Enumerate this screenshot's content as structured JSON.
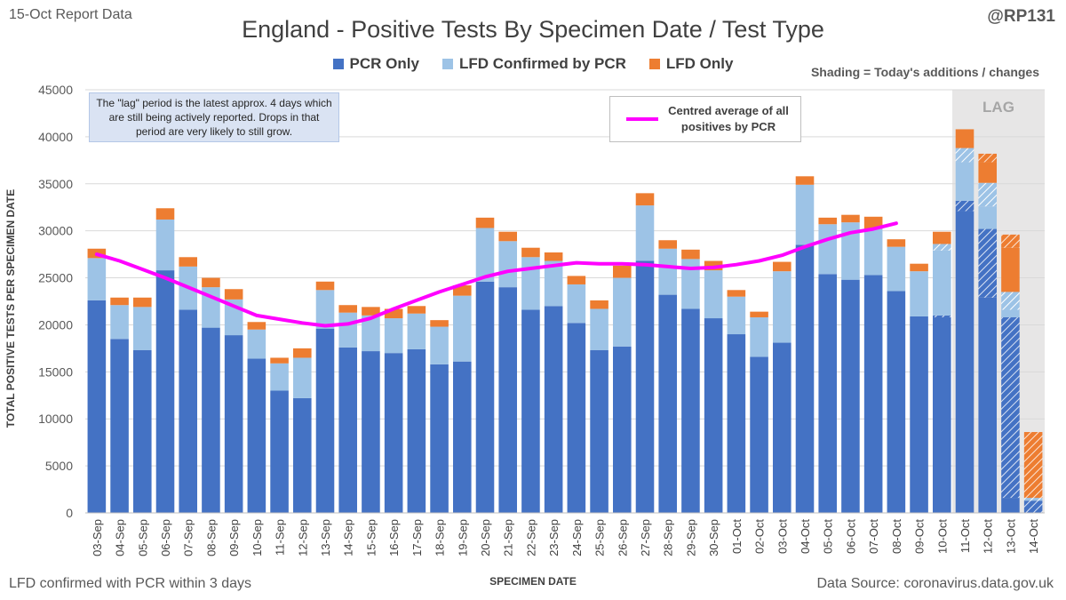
{
  "header": {
    "report_label": "15-Oct Report Data",
    "handle": "@RP131",
    "footer_left": "LFD confirmed with PCR within 3 days",
    "footer_right": "Data Source: coronavirus.data.gov.uk",
    "shading_note": "Shading = Today's additions / changes",
    "lag_note": "The \"lag\" period is the latest approx. 4 days which are still being actively reported.  Drops in that period are very likely to still grow.",
    "lag_label": "LAG",
    "avg_legend": "Centred average of all positives by PCR"
  },
  "colors": {
    "pcr": "#4472c4",
    "lfd_confirmed": "#9dc3e6",
    "lfd_only": "#ed7d31",
    "average": "#ff00ff",
    "lag_shade": "#e7e6e6"
  },
  "chart_data": {
    "type": "bar",
    "stacked": true,
    "title": "England - Positive Tests By Specimen Date / Test Type",
    "xlabel": "SPECIMEN DATE",
    "ylabel": "TOTAL POSITIVE TESTS PER SPECIMEN DATE",
    "ylim": [
      0,
      45000
    ],
    "yticks": [
      0,
      5000,
      10000,
      15000,
      20000,
      25000,
      30000,
      35000,
      40000,
      45000
    ],
    "grid": true,
    "legend_position": "top",
    "lag_categories": [
      "11-Oct",
      "12-Oct",
      "13-Oct",
      "14-Oct"
    ],
    "categories": [
      "03-Sep",
      "04-Sep",
      "05-Sep",
      "06-Sep",
      "07-Sep",
      "08-Sep",
      "09-Sep",
      "10-Sep",
      "11-Sep",
      "12-Sep",
      "13-Sep",
      "14-Sep",
      "15-Sep",
      "16-Sep",
      "17-Sep",
      "18-Sep",
      "19-Sep",
      "20-Sep",
      "21-Sep",
      "22-Sep",
      "23-Sep",
      "24-Sep",
      "25-Sep",
      "26-Sep",
      "27-Sep",
      "28-Sep",
      "29-Sep",
      "30-Sep",
      "01-Oct",
      "02-Oct",
      "03-Oct",
      "04-Oct",
      "05-Oct",
      "06-Oct",
      "07-Oct",
      "08-Oct",
      "09-Oct",
      "10-Oct",
      "11-Oct",
      "12-Oct",
      "13-Oct",
      "14-Oct"
    ],
    "series": [
      {
        "name": "PCR Only",
        "values": [
          22600,
          18500,
          17300,
          25800,
          21600,
          19700,
          18900,
          16400,
          13000,
          12200,
          19600,
          17600,
          17200,
          17000,
          17400,
          15800,
          16100,
          24600,
          24000,
          21600,
          22000,
          20200,
          17300,
          17700,
          26800,
          23200,
          21700,
          20700,
          19000,
          16600,
          18100,
          28500,
          25400,
          24800,
          25300,
          23600,
          20900,
          21000,
          33200,
          30200,
          20800,
          1300
        ]
      },
      {
        "name": "LFD Confirmed by PCR",
        "values": [
          4500,
          3600,
          4600,
          5400,
          4600,
          4300,
          3800,
          3100,
          2900,
          4300,
          4100,
          3700,
          3800,
          3700,
          3800,
          4000,
          7000,
          5700,
          4900,
          5600,
          4800,
          4100,
          4400,
          7300,
          5900,
          4900,
          5300,
          5100,
          4000,
          4200,
          7600,
          6400,
          5300,
          6100,
          4900,
          4700,
          4800,
          7600,
          5600,
          4900,
          2700,
          300
        ]
      },
      {
        "name": "LFD Only",
        "values": [
          1000,
          800,
          1000,
          1200,
          1000,
          1000,
          1100,
          800,
          600,
          1000,
          900,
          800,
          900,
          1000,
          800,
          700,
          1100,
          1100,
          1000,
          1000,
          900,
          900,
          900,
          1300,
          1300,
          900,
          1000,
          1000,
          700,
          600,
          1000,
          900,
          700,
          800,
          1300,
          800,
          800,
          1300,
          2000,
          3100,
          6100,
          7000
        ]
      },
      {
        "name": "Centred average of all positives by PCR",
        "type": "line",
        "values": [
          27500,
          26800,
          25900,
          25000,
          24000,
          23000,
          22000,
          21000,
          20600,
          20200,
          19900,
          20100,
          20700,
          21700,
          22600,
          23500,
          24300,
          25100,
          25700,
          26000,
          26300,
          26600,
          26500,
          26500,
          26400,
          26200,
          26000,
          26100,
          26400,
          26800,
          27400,
          28300,
          29100,
          29800,
          30200,
          30800,
          null,
          null,
          null,
          null,
          null,
          null
        ]
      }
    ],
    "todays_additions": {
      "pcr": [
        0,
        0,
        0,
        0,
        0,
        0,
        0,
        0,
        0,
        0,
        0,
        0,
        0,
        0,
        0,
        0,
        0,
        0,
        0,
        0,
        0,
        0,
        0,
        0,
        0,
        0,
        0,
        0,
        0,
        0,
        0,
        0,
        0,
        0,
        0,
        0,
        0,
        200,
        1100,
        7300,
        19200,
        1300
      ],
      "lfd_confirmed": [
        0,
        0,
        0,
        0,
        0,
        0,
        0,
        0,
        0,
        0,
        0,
        0,
        0,
        0,
        0,
        0,
        0,
        0,
        0,
        0,
        0,
        0,
        0,
        0,
        0,
        0,
        0,
        0,
        0,
        0,
        0,
        0,
        0,
        0,
        0,
        0,
        0,
        700,
        1500,
        2500,
        1900,
        300
      ],
      "lfd_only": [
        0,
        0,
        0,
        0,
        0,
        0,
        0,
        0,
        0,
        0,
        0,
        0,
        0,
        0,
        0,
        0,
        0,
        0,
        0,
        0,
        0,
        0,
        0,
        0,
        0,
        0,
        0,
        0,
        0,
        0,
        0,
        0,
        0,
        0,
        0,
        0,
        0,
        0,
        0,
        900,
        1400,
        7000
      ]
    }
  }
}
